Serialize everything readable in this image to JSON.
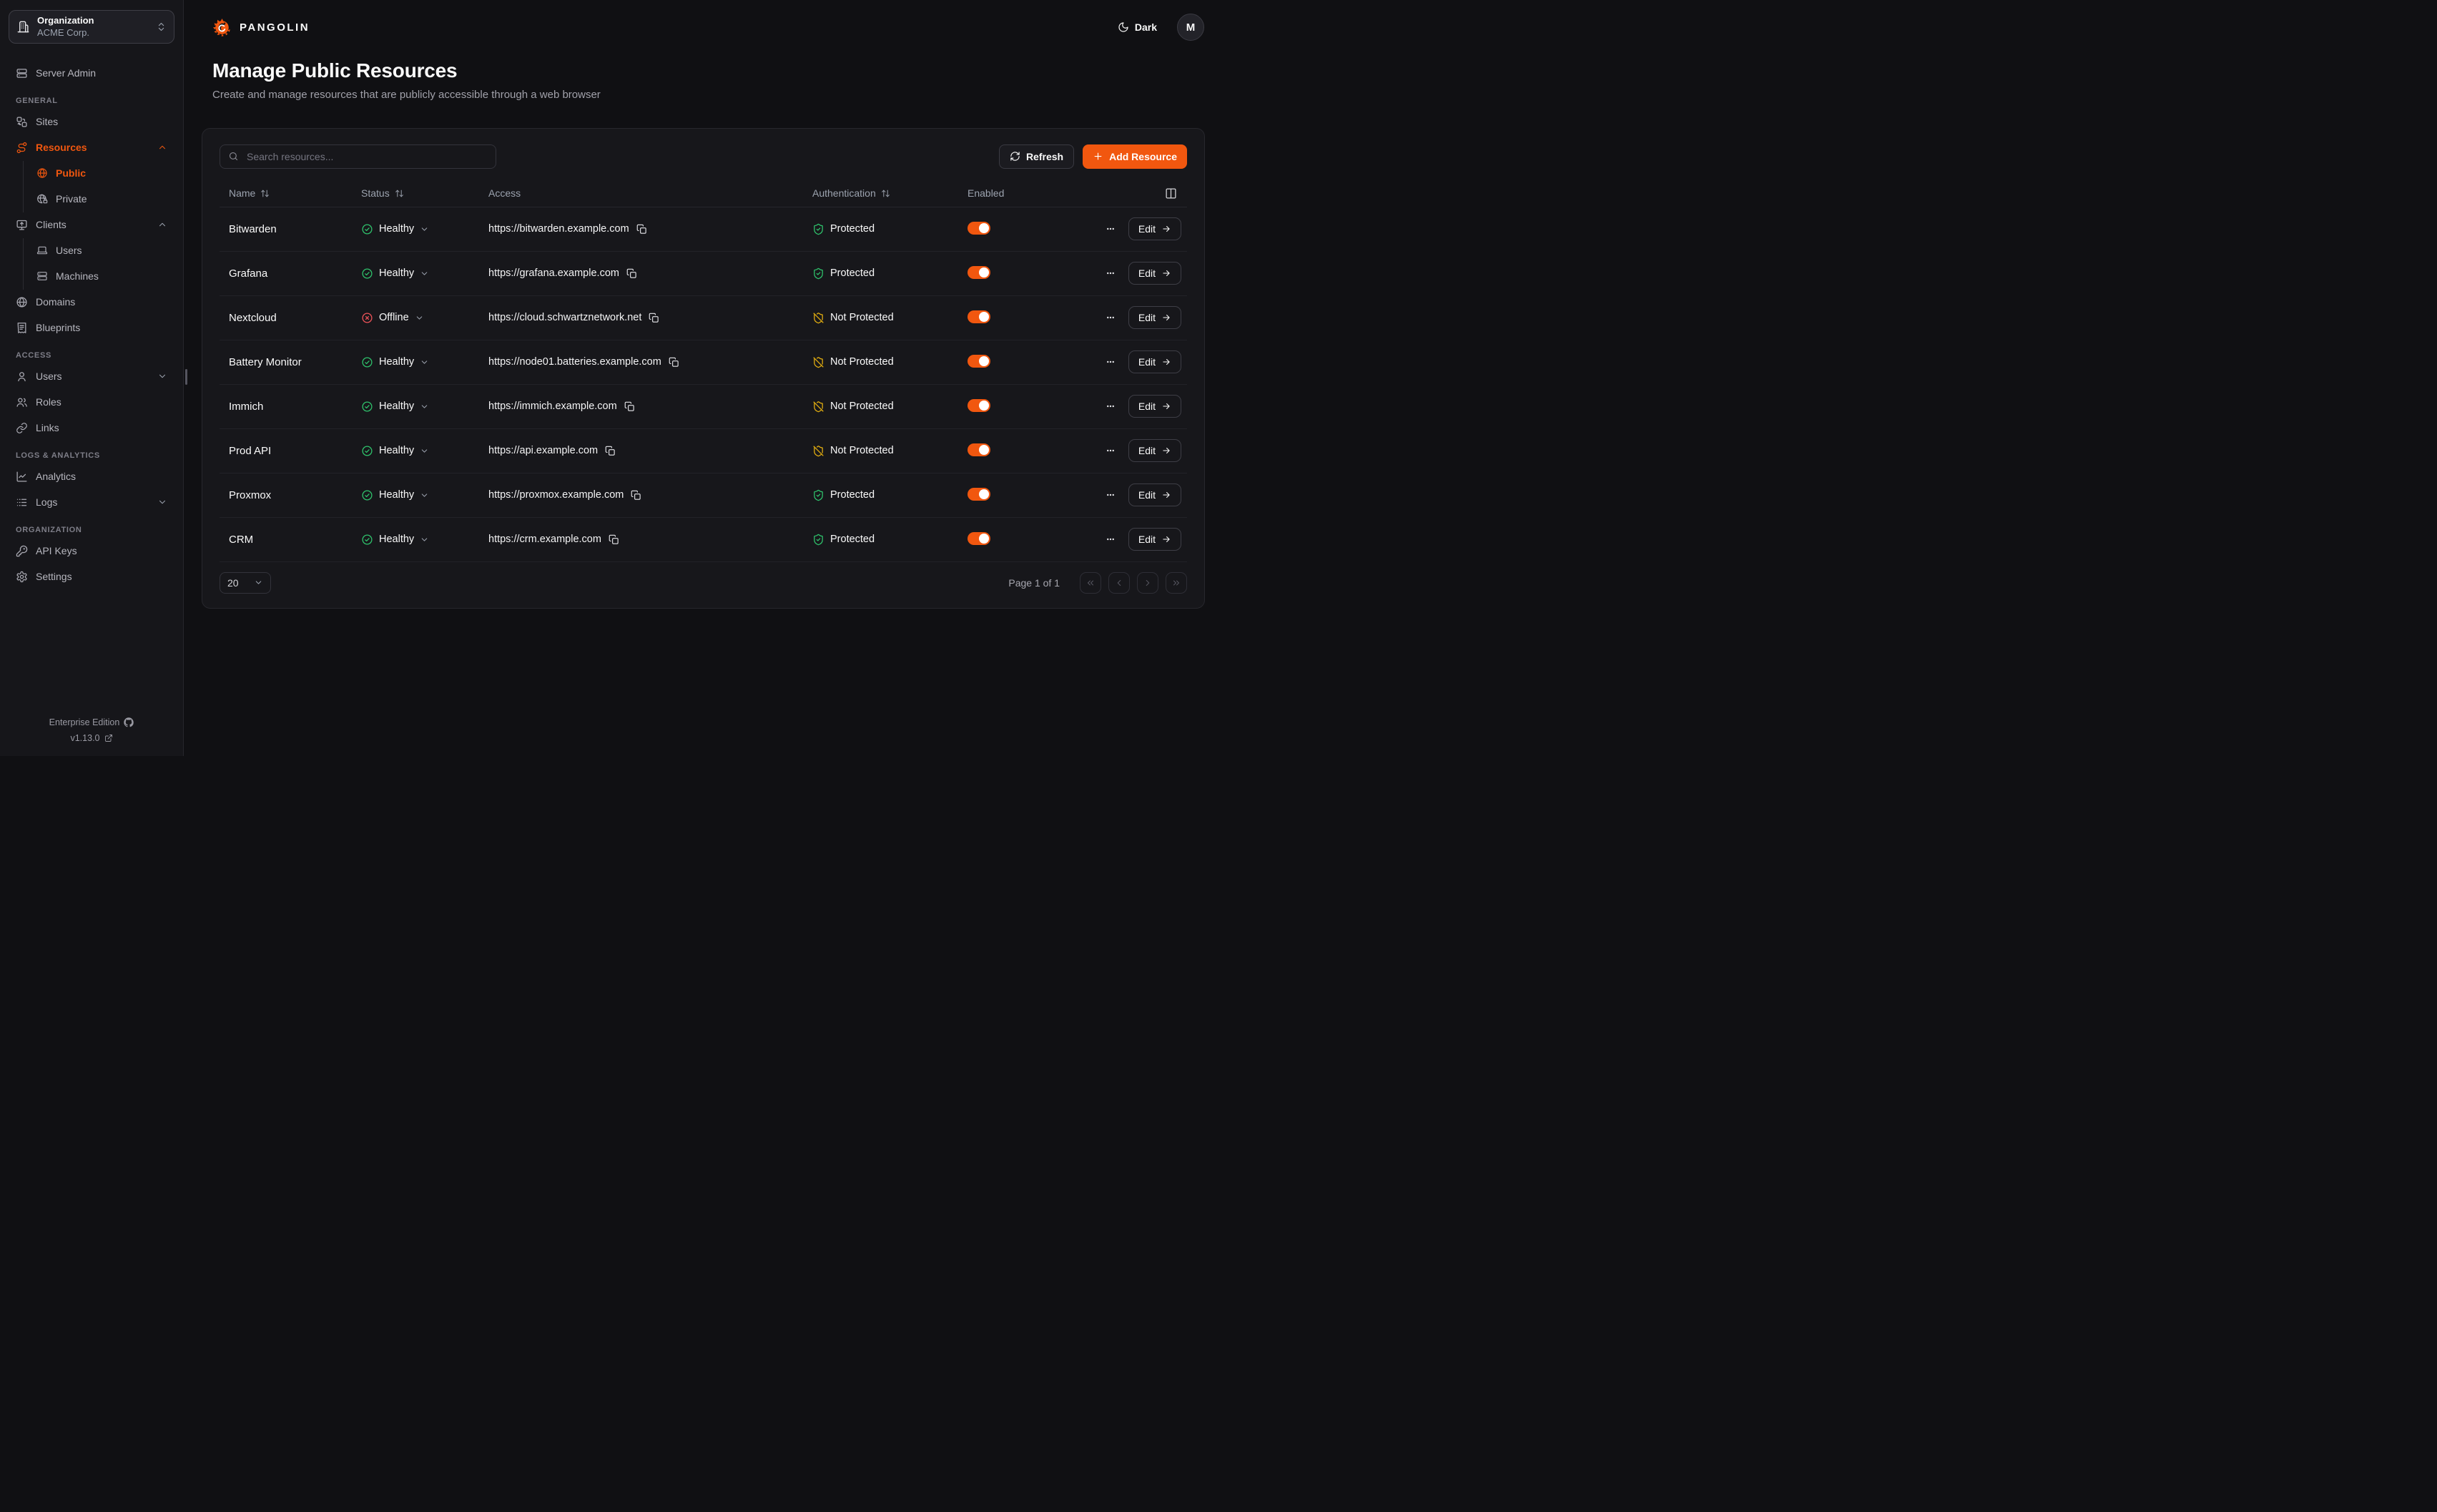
{
  "colors": {
    "accent": "#F1570F",
    "healthy_green": "#2FC36C",
    "offline_red": "#EF5359",
    "warn_amber": "#E3AE10"
  },
  "topbar": {
    "brand": "PANGOLIN",
    "theme_label": "Dark",
    "avatar_initial": "M"
  },
  "org_switcher": {
    "title": "Organization",
    "value": "ACME Corp."
  },
  "sidebar": {
    "server_admin": "Server Admin",
    "sections": {
      "general": "GENERAL",
      "access": "ACCESS",
      "logs": "LOGS & ANALYTICS",
      "organization": "ORGANIZATION"
    },
    "items": {
      "sites": "Sites",
      "resources": "Resources",
      "public": "Public",
      "private": "Private",
      "clients": "Clients",
      "client_users": "Users",
      "machines": "Machines",
      "domains": "Domains",
      "blueprints": "Blueprints",
      "users": "Users",
      "roles": "Roles",
      "links": "Links",
      "analytics": "Analytics",
      "logs": "Logs",
      "api_keys": "API Keys",
      "settings": "Settings"
    },
    "footer": {
      "edition": "Enterprise Edition",
      "version": "v1.13.0"
    }
  },
  "page": {
    "title": "Manage Public Resources",
    "subtitle": "Create and manage resources that are publicly accessible through a web browser"
  },
  "toolbar": {
    "search_placeholder": "Search resources...",
    "refresh_label": "Refresh",
    "add_label": "Add Resource"
  },
  "table": {
    "headers": {
      "name": "Name",
      "status": "Status",
      "access": "Access",
      "auth": "Authentication",
      "enabled": "Enabled"
    },
    "edit_label": "Edit",
    "rows": [
      {
        "name": "Bitwarden",
        "status": {
          "label": "Healthy",
          "state": "healthy"
        },
        "url": "https://bitwarden.example.com",
        "auth": {
          "label": "Protected",
          "state": "protected"
        },
        "enabled": true
      },
      {
        "name": "Grafana",
        "status": {
          "label": "Healthy",
          "state": "healthy"
        },
        "url": "https://grafana.example.com",
        "auth": {
          "label": "Protected",
          "state": "protected"
        },
        "enabled": true
      },
      {
        "name": "Nextcloud",
        "status": {
          "label": "Offline",
          "state": "offline"
        },
        "url": "https://cloud.schwartznetwork.net",
        "auth": {
          "label": "Not Protected",
          "state": "not_protected"
        },
        "enabled": true
      },
      {
        "name": "Battery Monitor",
        "status": {
          "label": "Healthy",
          "state": "healthy"
        },
        "url": "https://node01.batteries.example.com",
        "auth": {
          "label": "Not Protected",
          "state": "not_protected"
        },
        "enabled": true
      },
      {
        "name": "Immich",
        "status": {
          "label": "Healthy",
          "state": "healthy"
        },
        "url": "https://immich.example.com",
        "auth": {
          "label": "Not Protected",
          "state": "not_protected"
        },
        "enabled": true
      },
      {
        "name": "Prod API",
        "status": {
          "label": "Healthy",
          "state": "healthy"
        },
        "url": "https://api.example.com",
        "auth": {
          "label": "Not Protected",
          "state": "not_protected"
        },
        "enabled": true
      },
      {
        "name": "Proxmox",
        "status": {
          "label": "Healthy",
          "state": "healthy"
        },
        "url": "https://proxmox.example.com",
        "auth": {
          "label": "Protected",
          "state": "protected"
        },
        "enabled": true
      },
      {
        "name": "CRM",
        "status": {
          "label": "Healthy",
          "state": "healthy"
        },
        "url": "https://crm.example.com",
        "auth": {
          "label": "Protected",
          "state": "protected"
        },
        "enabled": true
      }
    ]
  },
  "pagination": {
    "page_size": "20",
    "page_info": "Page 1 of 1"
  }
}
